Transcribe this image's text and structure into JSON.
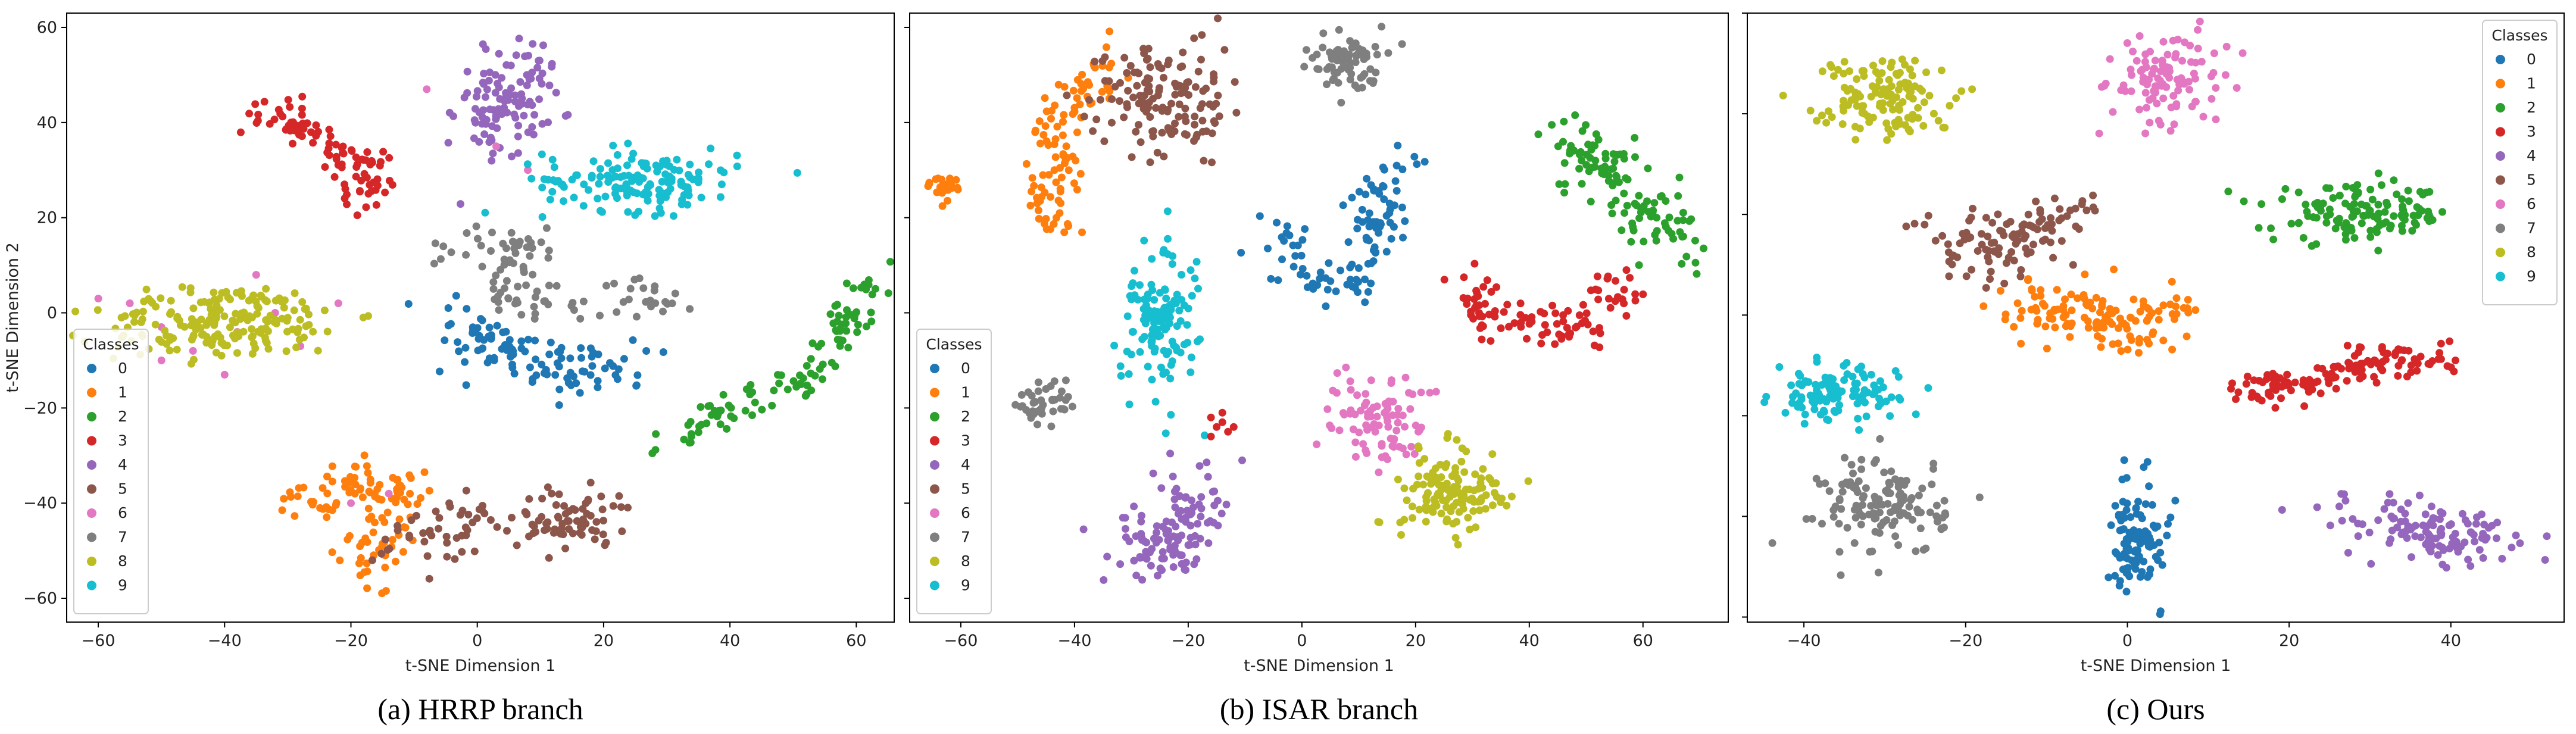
{
  "palette": [
    "#1f77b4",
    "#ff7f0e",
    "#2ca02c",
    "#d62728",
    "#9467bd",
    "#8c564b",
    "#e377c2",
    "#7f7f7f",
    "#bcbd22",
    "#17becf"
  ],
  "legend": {
    "title": "Classes",
    "labels": [
      "0",
      "1",
      "2",
      "3",
      "4",
      "5",
      "6",
      "7",
      "8",
      "9"
    ]
  },
  "chart_data": [
    {
      "type": "scatter",
      "caption": "(a) HRRP branch",
      "xlabel": "t-SNE Dimension 1",
      "ylabel": "t-SNE Dimension 2",
      "xlim": [
        -65,
        66
      ],
      "ylim": [
        -65,
        63
      ],
      "xticks": [
        -60,
        -40,
        -20,
        0,
        20,
        40,
        60
      ],
      "yticks": [
        -60,
        -40,
        -20,
        0,
        20,
        40,
        60
      ],
      "legend_position": "lower-left",
      "clusters": [
        {
          "class": 0,
          "shape": "poly",
          "n": 110,
          "pts": [
            [
              -3,
              0
            ],
            [
              3,
              -8
            ],
            [
              12,
              -12
            ],
            [
              25,
              -11
            ]
          ],
          "spread": 3.0
        },
        {
          "class": 1,
          "shape": "poly",
          "n": 120,
          "pts": [
            [
              -30,
              -40
            ],
            [
              -18,
              -36
            ],
            [
              -10,
              -37
            ],
            [
              -15,
              -45
            ],
            [
              -18,
              -55
            ]
          ],
          "spread": 2.3
        },
        {
          "class": 2,
          "shape": "poly",
          "n": 110,
          "pts": [
            [
              -33,
              -29
            ],
            [
              -28,
              -25
            ],
            [
              -20,
              -19
            ],
            [
              -10,
              -14
            ],
            [
              -3,
              0
            ],
            [
              2,
              9
            ]
          ],
          "offset": [
            62,
            0
          ],
          "spread": 1.7
        },
        {
          "class": 3,
          "shape": "poly",
          "n": 100,
          "pts": [
            [
              -38,
              42
            ],
            [
              -30,
              41
            ],
            [
              -24,
              35
            ],
            [
              -17,
              31
            ],
            [
              -16,
              27
            ],
            [
              -20,
              24
            ]
          ],
          "spread": 2.0
        },
        {
          "class": 4,
          "shape": "ellipse",
          "n": 110,
          "cx": 5,
          "cy": 45,
          "rx": 6,
          "ry": 11,
          "angle": -15
        },
        {
          "class": 5,
          "shape": "poly",
          "n": 120,
          "pts": [
            [
              -12,
              -47
            ],
            [
              -3,
              -44
            ],
            [
              8,
              -45
            ],
            [
              18,
              -42
            ],
            [
              20,
              -48
            ]
          ],
          "spread": 3.0
        },
        {
          "class": 6,
          "shape": "points",
          "n": 0,
          "pts": [
            [
              -55,
              2
            ],
            [
              -50,
              -3
            ],
            [
              -45,
              -8
            ],
            [
              -38,
              -4
            ],
            [
              -32,
              0
            ],
            [
              -28,
              -7
            ],
            [
              -40,
              -13
            ],
            [
              -22,
              2
            ],
            [
              -8,
              47
            ],
            [
              -20,
              -40
            ],
            [
              -14,
              -38
            ],
            [
              -50,
              -10
            ],
            [
              3,
              35
            ],
            [
              8,
              30
            ],
            [
              -35,
              8
            ],
            [
              -60,
              3
            ]
          ]
        },
        {
          "class": 7,
          "shape": "poly",
          "n": 100,
          "pts": [
            [
              -4,
              14
            ],
            [
              4,
              14
            ],
            [
              10,
              17
            ],
            [
              6,
              9
            ],
            [
              3,
              3
            ],
            [
              27,
              4
            ],
            [
              33,
              0
            ]
          ],
          "spread": 2.3
        },
        {
          "class": 8,
          "shape": "ellipse",
          "n": 200,
          "cx": -40,
          "cy": -2,
          "rx": 18,
          "ry": 7,
          "angle": 5
        },
        {
          "class": 9,
          "shape": "ellipse",
          "n": 150,
          "cx": 26,
          "cy": 28,
          "rx": 14,
          "ry": 6,
          "angle": 0
        }
      ]
    },
    {
      "type": "scatter",
      "caption": "(b) ISAR branch",
      "xlabel": "t-SNE Dimension 1",
      "ylabel": "",
      "xlim": [
        -69,
        75
      ],
      "ylim": [
        -65,
        63
      ],
      "xticks": [
        -60,
        -40,
        -20,
        0,
        20,
        40,
        60
      ],
      "yticks": [],
      "legend_position": "lower-left",
      "clusters": [
        {
          "class": 0,
          "shape": "poly",
          "n": 110,
          "pts": [
            [
              -5,
              18
            ],
            [
              0,
              8
            ],
            [
              8,
              5
            ],
            [
              12,
              15
            ],
            [
              14,
              25
            ],
            [
              17,
              32
            ]
          ],
          "spread": 2.6
        },
        {
          "class": 1,
          "shape": "poly",
          "n": 100,
          "pts": [
            [
              -46,
              18
            ],
            [
              -42,
              28
            ],
            [
              -44,
              38
            ],
            [
              -38,
              48
            ],
            [
              -32,
              52
            ]
          ],
          "spread": 2.4
        },
        {
          "class": 2,
          "shape": "poly",
          "n": 120,
          "pts": [
            [
              45,
              38
            ],
            [
              52,
              32
            ],
            [
              58,
              24
            ],
            [
              62,
              18
            ],
            [
              68,
              14
            ]
          ],
          "spread": 3.0
        },
        {
          "class": 3,
          "shape": "poly",
          "n": 100,
          "pts": [
            [
              30,
              7
            ],
            [
              32,
              -3
            ],
            [
              40,
              -2
            ],
            [
              47,
              -4
            ],
            [
              55,
              3
            ],
            [
              58,
              8
            ]
          ],
          "spread": 2.3
        },
        {
          "class": 4,
          "shape": "poly",
          "n": 120,
          "pts": [
            [
              -30,
              -49
            ],
            [
              -23,
              -50
            ],
            [
              -20,
              -43
            ],
            [
              -17,
              -36
            ]
          ],
          "spread": 3.6
        },
        {
          "class": 5,
          "shape": "poly",
          "n": 140,
          "pts": [
            [
              -38,
              43
            ],
            [
              -30,
              48
            ],
            [
              -20,
              52
            ],
            [
              -22,
              38
            ],
            [
              -28,
              42
            ]
          ],
          "spread": 4.0
        },
        {
          "class": 6,
          "shape": "ellipse",
          "n": 90,
          "cx": 14,
          "cy": -22,
          "rx": 8,
          "ry": 9,
          "angle": 0
        },
        {
          "class": 7,
          "shape": "ellipse",
          "n": 80,
          "cx": 8,
          "cy": 53,
          "rx": 6,
          "ry": 5,
          "angle": 0
        },
        {
          "class": 8,
          "shape": "ellipse",
          "n": 130,
          "cx": 26,
          "cy": -38,
          "rx": 9,
          "ry": 9,
          "angle": 0
        },
        {
          "class": 9,
          "shape": "ellipse",
          "n": 130,
          "cx": -25,
          "cy": -2,
          "rx": 6,
          "ry": 14,
          "angle": 0
        },
        {
          "class": 7,
          "shape": "ellipse",
          "n": 40,
          "cx": -45,
          "cy": -19,
          "rx": 4,
          "ry": 4,
          "angle": 0
        },
        {
          "class": 1,
          "shape": "ellipse",
          "n": 25,
          "cx": -63,
          "cy": 27,
          "rx": 2.5,
          "ry": 3,
          "angle": 0
        },
        {
          "class": 3,
          "shape": "points",
          "n": 0,
          "pts": [
            [
              -16,
              -22
            ],
            [
              -15,
              -24
            ],
            [
              -14,
              -23
            ],
            [
              -13,
              -25
            ],
            [
              -16,
              -26
            ],
            [
              -14,
              -21
            ],
            [
              -12,
              -24
            ]
          ]
        }
      ]
    },
    {
      "type": "scatter",
      "caption": "(c)  Ours",
      "xlabel": "t-SNE Dimension 1",
      "ylabel": "",
      "xlim": [
        -47,
        54
      ],
      "ylim": [
        -61,
        60
      ],
      "xticks": [
        -40,
        -20,
        0,
        20,
        40
      ],
      "yticks": [],
      "legend_position": "upper-right",
      "clusters": [
        {
          "class": 0,
          "shape": "ellipse",
          "n": 110,
          "cx": 1,
          "cy": -45,
          "rx": 3.5,
          "ry": 12,
          "angle": 0
        },
        {
          "class": 1,
          "shape": "poly",
          "n": 130,
          "pts": [
            [
              -12,
              3
            ],
            [
              -6,
              0
            ],
            [
              0,
              -4
            ],
            [
              5,
              2
            ]
          ],
          "spread": 3.0
        },
        {
          "class": 2,
          "shape": "ellipse",
          "n": 130,
          "cx": 29,
          "cy": 20,
          "rx": 10,
          "ry": 5,
          "angle": 0
        },
        {
          "class": 3,
          "shape": "poly",
          "n": 130,
          "pts": [
            [
              14,
              -16
            ],
            [
              20,
              -14
            ],
            [
              28,
              -10
            ],
            [
              36,
              -8
            ],
            [
              40,
              -9
            ]
          ],
          "spread": 1.8
        },
        {
          "class": 4,
          "shape": "ellipse",
          "n": 120,
          "cx": 38,
          "cy": -43,
          "rx": 10,
          "ry": 4.5,
          "angle": -15
        },
        {
          "class": 5,
          "shape": "poly",
          "n": 110,
          "pts": [
            [
              -22,
              15
            ],
            [
              -17,
              14
            ],
            [
              -12,
              17
            ],
            [
              -8,
              20
            ]
          ],
          "spread": 2.8
        },
        {
          "class": 6,
          "shape": "ellipse",
          "n": 110,
          "cx": 5,
          "cy": 47,
          "rx": 6,
          "ry": 9,
          "angle": -20
        },
        {
          "class": 7,
          "shape": "ellipse",
          "n": 130,
          "cx": -30,
          "cy": -38,
          "rx": 7,
          "ry": 9,
          "angle": 0
        },
        {
          "class": 8,
          "shape": "ellipse",
          "n": 130,
          "cx": -30,
          "cy": 43,
          "rx": 8,
          "ry": 7,
          "angle": -25
        },
        {
          "class": 9,
          "shape": "ellipse",
          "n": 110,
          "cx": -36,
          "cy": -16,
          "rx": 7,
          "ry": 5,
          "angle": 0
        }
      ]
    }
  ]
}
